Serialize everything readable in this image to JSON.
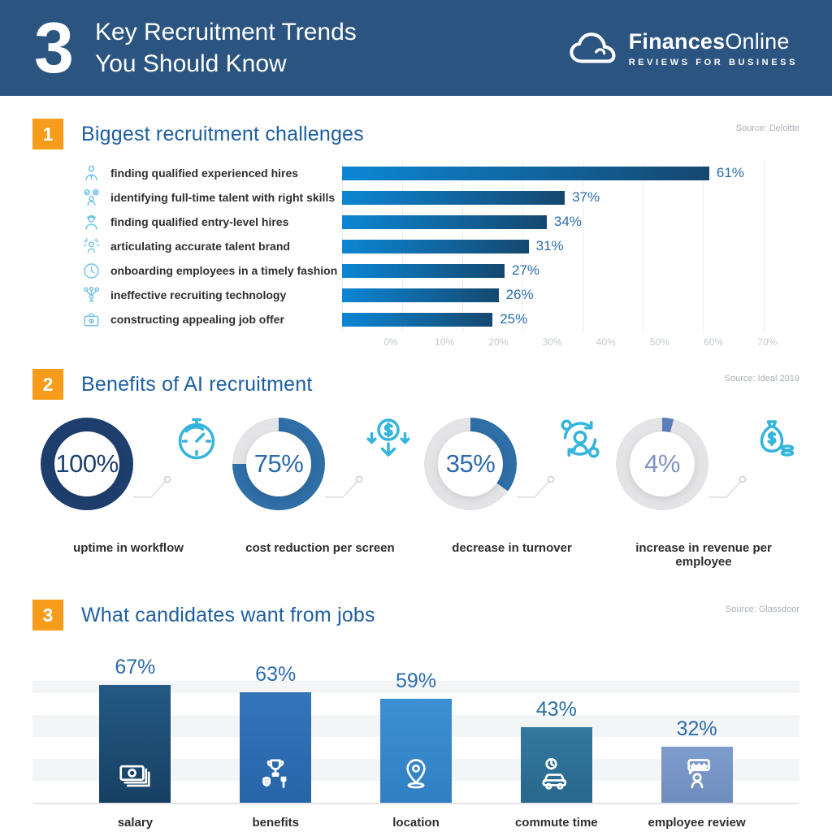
{
  "header": {
    "big_number": "3",
    "title_line1": "Key Recruitment Trends",
    "title_line2": "You Should Know",
    "logo": {
      "brand_bold": "Finances",
      "brand_regular": "Online",
      "tagline": "REVIEWS FOR BUSINESS",
      "icon": "cloud-icon"
    },
    "bg_color": "#2b5580"
  },
  "accent_colors": {
    "orange": "#f89c1c",
    "title_blue": "#1e5fa0",
    "value_blue": "#2a6cab"
  },
  "sections": [
    {
      "number": "1",
      "title": "Biggest recruitment challenges",
      "source": "Source: Deloitte"
    },
    {
      "number": "2",
      "title": "Benefits of AI recruitment",
      "source": "Source: Ideal 2019"
    },
    {
      "number": "3",
      "title": "What candidates want from jobs",
      "source": "Source: Glassdoor"
    }
  ],
  "chart_data": [
    {
      "type": "bar",
      "orientation": "horizontal",
      "title": "Biggest recruitment challenges",
      "source": "Source: Deloitte",
      "categories": [
        "finding qualified experienced hires",
        "identifying full-time talent with right skills",
        "finding qualified entry-level hires",
        "articulating accurate talent brand",
        "onboarding employees in a timely fashion",
        "ineffective recruiting technology",
        "constructing appealing job offer"
      ],
      "values": [
        61,
        37,
        34,
        31,
        27,
        26,
        25
      ],
      "value_labels": [
        "61%",
        "37%",
        "34%",
        "31%",
        "27%",
        "26%",
        "25%"
      ],
      "icons": [
        "businessman-icon",
        "talent-decision-icon",
        "worker-icon",
        "talent-brand-icon",
        "clock-icon",
        "network-icon",
        "briefcase-icon"
      ],
      "x_ticks": [
        "0%",
        "10%",
        "20%",
        "30%",
        "40%",
        "50%",
        "60%",
        "70%"
      ],
      "x_tick_values": [
        0,
        10,
        20,
        30,
        40,
        50,
        60,
        70
      ],
      "xlim": [
        0,
        76
      ],
      "grid": true,
      "bar_gradient": [
        "#0c86d4",
        "#15486f"
      ]
    },
    {
      "type": "donut-set",
      "title": "Benefits of AI recruitment",
      "source": "Source: Ideal 2019",
      "track_color": "#e4e4e6",
      "items": [
        {
          "value": 100,
          "value_label": "100%",
          "label": "uptime in workflow",
          "ring_color": "#1e3f6d",
          "text_color": "#1e3f6d",
          "icon": "stopwatch-icon"
        },
        {
          "value": 75,
          "value_label": "75%",
          "label": "cost reduction per screen",
          "ring_color": "#2f6ea6",
          "text_color": "#2b6aa9",
          "icon": "cost-down-icon"
        },
        {
          "value": 35,
          "value_label": "35%",
          "label": "decrease in turnover",
          "ring_color": "#2f6ea6",
          "text_color": "#2b6aa9",
          "icon": "turnover-icon"
        },
        {
          "value": 4,
          "value_label": "4%",
          "label": "increase in revenue per employee",
          "ring_color": "#5e7fba",
          "text_color": "#8094c4",
          "icon": "revenue-icon"
        }
      ]
    },
    {
      "type": "bar",
      "orientation": "vertical",
      "title": "What candidates want from jobs",
      "source": "Source: Glassdoor",
      "categories": [
        "salary",
        "benefits",
        "location",
        "commute time",
        "employee review"
      ],
      "values": [
        67,
        63,
        59,
        43,
        32
      ],
      "value_labels": [
        "67%",
        "63%",
        "59%",
        "43%",
        "32%"
      ],
      "icons": [
        "money-icon",
        "benefits-icon",
        "location-pin-icon",
        "commute-icon",
        "review-icon"
      ],
      "bar_gradients": [
        [
          "#245a85",
          "#173f63"
        ],
        [
          "#3474b8",
          "#2765a9"
        ],
        [
          "#3d90d4",
          "#2f80c2"
        ],
        [
          "#34789f",
          "#29678c"
        ],
        [
          "#7f9cce",
          "#6f8dbd"
        ]
      ],
      "ylim": [
        0,
        70
      ],
      "grid": "horizontal-bands"
    }
  ]
}
